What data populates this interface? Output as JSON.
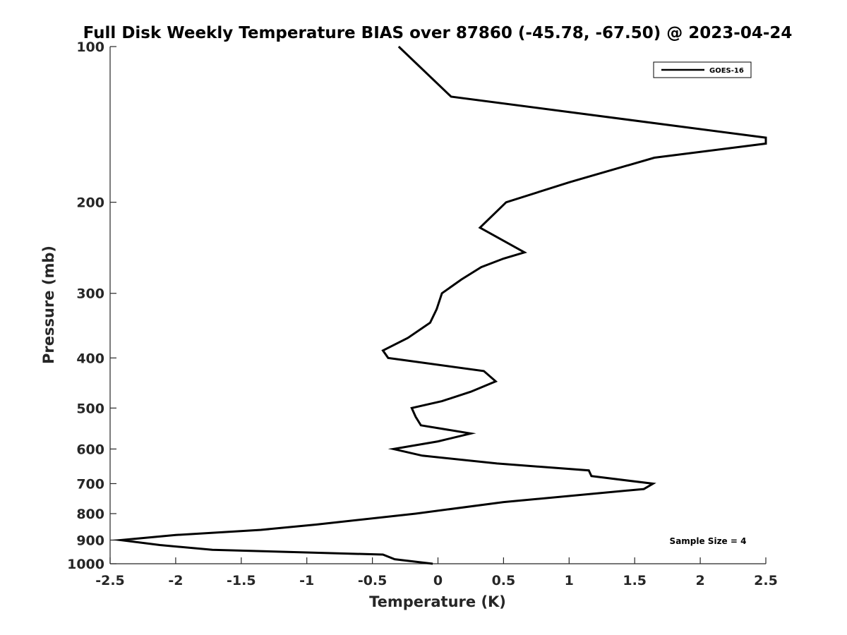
{
  "chart_data": {
    "type": "line",
    "title": "Full Disk Weekly Temperature BIAS over 87860 (-45.78, -67.50) @ 2023-04-24",
    "xlabel": "Temperature (K)",
    "ylabel": "Pressure (mb)",
    "xlim": [
      -2.5,
      2.5
    ],
    "ylim": [
      1000,
      100
    ],
    "yscale": "log",
    "y_reversed": true,
    "xticks": [
      -2.5,
      -2,
      -1.5,
      -1,
      -0.5,
      0,
      0.5,
      1,
      1.5,
      2,
      2.5
    ],
    "xtick_labels": [
      "-2.5",
      "-2",
      "-1.5",
      "-1",
      "-0.5",
      "0",
      "0.5",
      "1",
      "1.5",
      "2",
      "2.5"
    ],
    "yticks": [
      100,
      200,
      300,
      400,
      500,
      600,
      700,
      800,
      900,
      1000
    ],
    "ytick_labels": [
      "100",
      "200",
      "300",
      "400",
      "500",
      "600",
      "700",
      "800",
      "900",
      "1000"
    ],
    "grid": false,
    "legend_position": "top-right",
    "annotation": "Sample Size = 4",
    "series": [
      {
        "name": "GOES-16",
        "color": "#000000",
        "points": [
          {
            "x": -0.3,
            "y": 100
          },
          {
            "x": 0.1,
            "y": 125
          },
          {
            "x": 2.5,
            "y": 150
          },
          {
            "x": 2.5,
            "y": 154
          },
          {
            "x": 1.65,
            "y": 164
          },
          {
            "x": 1.0,
            "y": 183
          },
          {
            "x": 0.52,
            "y": 200
          },
          {
            "x": 0.32,
            "y": 224
          },
          {
            "x": 0.66,
            "y": 250
          },
          {
            "x": 0.5,
            "y": 257
          },
          {
            "x": 0.33,
            "y": 267
          },
          {
            "x": 0.18,
            "y": 282
          },
          {
            "x": 0.03,
            "y": 300
          },
          {
            "x": -0.01,
            "y": 322
          },
          {
            "x": -0.06,
            "y": 342
          },
          {
            "x": -0.23,
            "y": 366
          },
          {
            "x": -0.42,
            "y": 387
          },
          {
            "x": -0.38,
            "y": 400
          },
          {
            "x": 0.35,
            "y": 424
          },
          {
            "x": 0.44,
            "y": 444
          },
          {
            "x": 0.25,
            "y": 465
          },
          {
            "x": 0.03,
            "y": 485
          },
          {
            "x": -0.2,
            "y": 500
          },
          {
            "x": -0.17,
            "y": 520
          },
          {
            "x": -0.13,
            "y": 540
          },
          {
            "x": 0.25,
            "y": 560
          },
          {
            "x": 0.0,
            "y": 580
          },
          {
            "x": -0.34,
            "y": 600
          },
          {
            "x": -0.12,
            "y": 618
          },
          {
            "x": 0.45,
            "y": 640
          },
          {
            "x": 1.15,
            "y": 660
          },
          {
            "x": 1.17,
            "y": 677
          },
          {
            "x": 1.64,
            "y": 700
          },
          {
            "x": 1.57,
            "y": 717
          },
          {
            "x": 0.5,
            "y": 760
          },
          {
            "x": -0.17,
            "y": 800
          },
          {
            "x": -0.93,
            "y": 840
          },
          {
            "x": -1.35,
            "y": 860
          },
          {
            "x": -2.0,
            "y": 880
          },
          {
            "x": -2.42,
            "y": 900
          },
          {
            "x": -2.12,
            "y": 920
          },
          {
            "x": -1.72,
            "y": 940
          },
          {
            "x": -0.42,
            "y": 960
          },
          {
            "x": -0.33,
            "y": 980
          },
          {
            "x": -0.04,
            "y": 1000
          }
        ]
      }
    ]
  }
}
